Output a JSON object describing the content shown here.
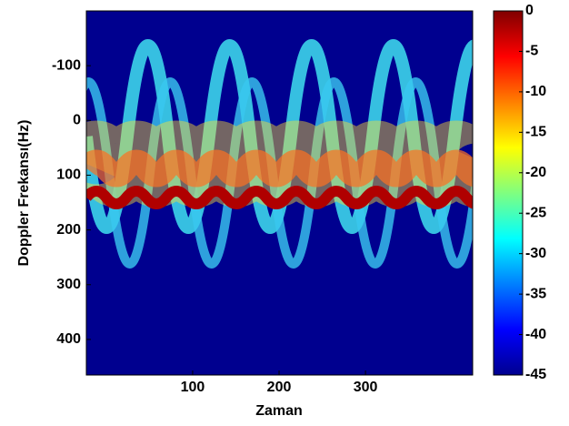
{
  "chart_data": {
    "type": "heatmap",
    "x_label": "Zaman",
    "y_label": "Doppler Frekansı(Hz)",
    "xlim": [
      -23,
      424
    ],
    "xticks": [
      100,
      200,
      300
    ],
    "ylim": [
      465,
      -200
    ],
    "yticks": [
      -100,
      0,
      100,
      200,
      300,
      400
    ],
    "colorbar": {
      "colormap": "jet",
      "clim": [
        -45,
        0
      ],
      "ticks": [
        0,
        -5,
        -10,
        -15,
        -20,
        -25,
        -30,
        -35,
        -40,
        -45
      ]
    }
  }
}
